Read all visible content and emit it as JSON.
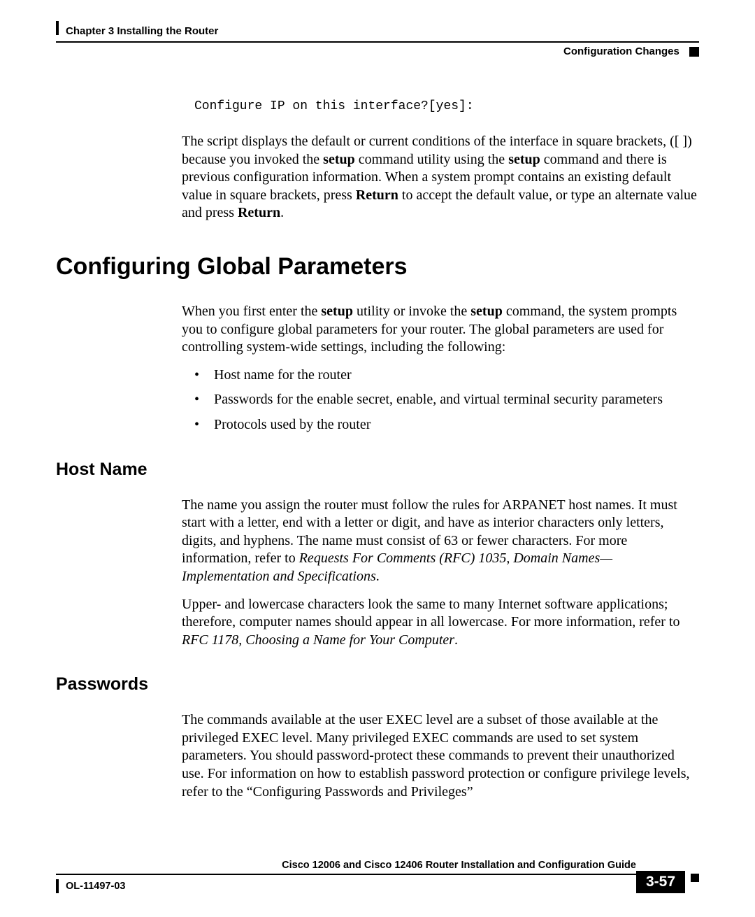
{
  "header": {
    "chapter": "Chapter 3      Installing the Router",
    "section": "Configuration Changes"
  },
  "code_line": "Configure IP on this interface?[yes]:",
  "intro_para": {
    "t1": "The script displays the default or current conditions of the interface in square brackets, ([ ]) because you invoked the ",
    "b1": "setup",
    "t2": " command utility using the ",
    "b2": "setup",
    "t3": " command and there is previous configuration information. When a system prompt contains an existing default value in square brackets, press ",
    "b3": "Return",
    "t4": " to accept the default value, or type an alternate value and press ",
    "b4": "Return",
    "t5": "."
  },
  "h1": "Configuring Global Parameters",
  "global_para": {
    "t1": "When you first enter the ",
    "b1": "setup",
    "t2": " utility or invoke the ",
    "b2": "setup",
    "t3": " command, the system prompts you to configure global parameters for your router. The global parameters are used for controlling system-wide settings, including the following:"
  },
  "bullets": {
    "b1": "Host name for the router",
    "b2": "Passwords for the enable secret, enable, and virtual terminal security parameters",
    "b3": "Protocols used by the router"
  },
  "h2_host": "Host Name",
  "host_p1": {
    "t1": "The name you assign the router must follow the rules for ARPANET host names. It must start with a letter, end with a letter or digit, and have as interior characters only letters, digits, and hyphens. The name must consist of 63 or fewer characters. For more information, refer to ",
    "i1": "Requests For Comments (RFC) 1035, Domain Names—Implementation and Specifications",
    "t2": "."
  },
  "host_p2": {
    "t1": "Upper- and lowercase characters look the same to many Internet software applications; therefore, computer names should appear in all lowercase. For more information, refer to ",
    "i1": "RFC 1178, Choosing a Name for Your Computer",
    "t2": "."
  },
  "h2_pass": "Passwords",
  "pass_p1": "The commands available at the user EXEC level are a subset of those available at the privileged EXEC level. Many privileged EXEC commands are used to set system parameters. You should password-protect these commands to prevent their unauthorized use. For information on how to establish password protection or configure privilege levels, refer to the “Configuring Passwords and Privileges”",
  "footer": {
    "guide": "Cisco 12006 and Cisco 12406 Router Installation and Configuration Guide",
    "docnum": "OL-11497-03",
    "pagenum": "3-57"
  }
}
